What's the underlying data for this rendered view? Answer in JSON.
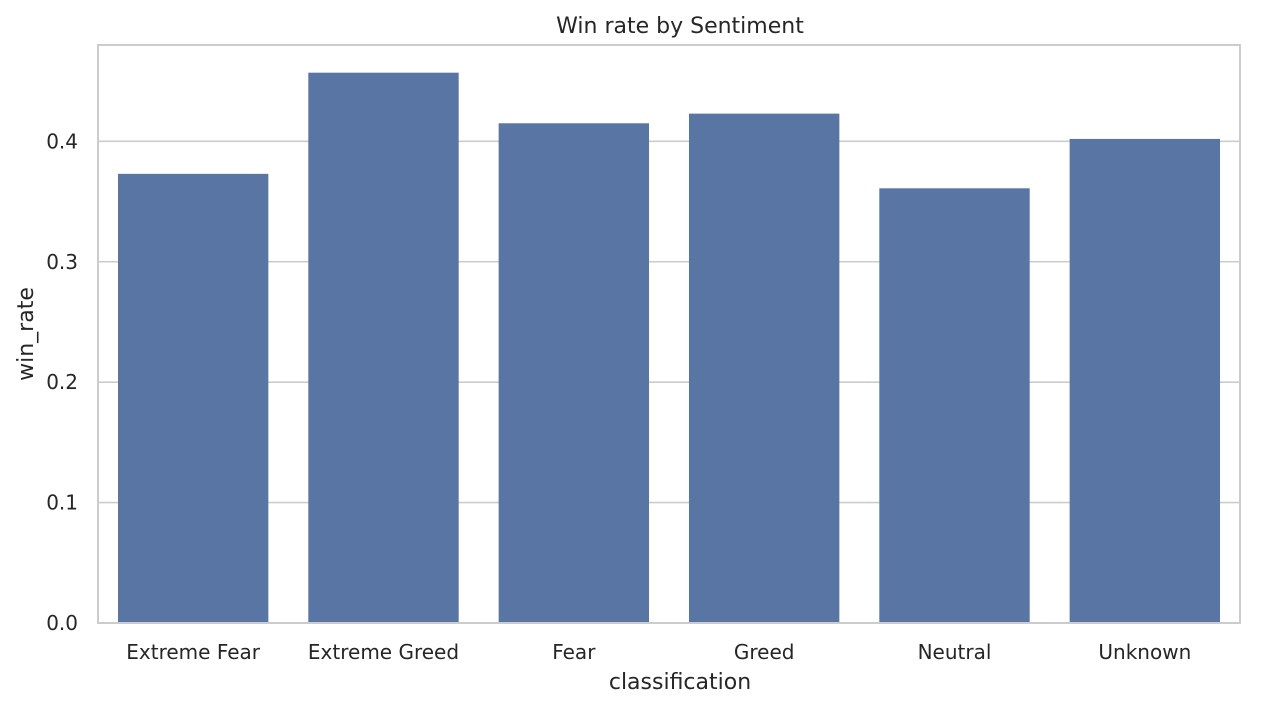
{
  "chart_data": {
    "type": "bar",
    "title": "Win rate by Sentiment",
    "xlabel": "classification",
    "ylabel": "win_rate",
    "categories": [
      "Extreme Fear",
      "Extreme Greed",
      "Fear",
      "Greed",
      "Neutral",
      "Unknown"
    ],
    "values": [
      0.373,
      0.457,
      0.415,
      0.423,
      0.361,
      0.402
    ],
    "ylim": [
      0,
      0.48
    ],
    "yticks": [
      "0.0",
      "0.1",
      "0.2",
      "0.3",
      "0.4"
    ],
    "grid": "horizontal",
    "bar_color": "#5975a4"
  }
}
